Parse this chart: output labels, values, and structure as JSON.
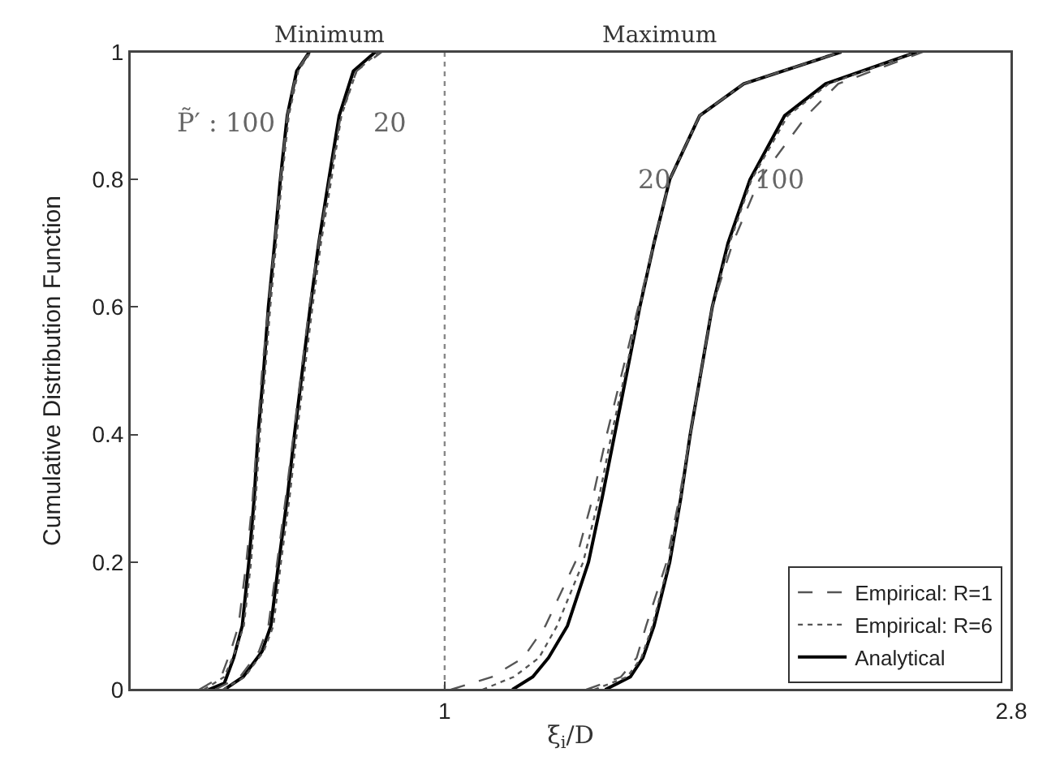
{
  "chart_data": {
    "type": "line",
    "xlabel": "ξ$_{i}$/D",
    "ylabel": "Cumulative Distribution Function",
    "xlim": [
      0,
      2.8
    ],
    "ylim": [
      0,
      1
    ],
    "xticks": [
      1,
      2.8
    ],
    "yticks": [
      0,
      0.2,
      0.4,
      0.6,
      0.8,
      1
    ],
    "grid": false,
    "legend": "bottom right",
    "marker": "none",
    "ref_lines": [
      {
        "axis": "x",
        "value": 1,
        "color": "#888888",
        "line_style": "dotted"
      }
    ],
    "annotations": [
      "Minimum",
      "Maximum",
      "P̃′ : 100",
      "20",
      "20",
      "100"
    ],
    "series": [
      {
        "name": "Empirical: R=1",
        "color": "#555555",
        "line_style": "dashed",
        "x": [
          0.22,
          0.29,
          0.32,
          0.345,
          0.37,
          0.39,
          0.405,
          0.42,
          0.44,
          0.46,
          0.478,
          0.5,
          0.53,
          0.57
        ],
        "values": [
          0,
          0.02,
          0.06,
          0.1,
          0.2,
          0.3,
          0.4,
          0.5,
          0.6,
          0.7,
          0.8,
          0.9,
          0.97,
          1
        ]
      },
      {
        "name": "Empirical: R=6",
        "color": "#555555",
        "line_style": "dotted",
        "x": [
          0.235,
          0.3,
          0.335,
          0.362,
          0.385,
          0.4,
          0.413,
          0.43,
          0.446,
          0.465,
          0.483,
          0.505,
          0.535,
          0.575
        ],
        "values": [
          0,
          0.02,
          0.06,
          0.1,
          0.2,
          0.3,
          0.4,
          0.5,
          0.6,
          0.7,
          0.8,
          0.9,
          0.97,
          1
        ]
      },
      {
        "name": "Analytical",
        "color": "#000000",
        "line_style": "solid",
        "x": [
          0.25,
          0.3,
          0.33,
          0.357,
          0.378,
          0.395,
          0.407,
          0.425,
          0.44,
          0.46,
          0.478,
          0.5,
          0.53,
          0.57
        ],
        "values": [
          0,
          0.01,
          0.05,
          0.1,
          0.2,
          0.3,
          0.4,
          0.5,
          0.6,
          0.7,
          0.8,
          0.9,
          0.97,
          1
        ]
      },
      {
        "color": "#555555",
        "line_style": "dashed",
        "x": [
          0.27,
          0.35,
          0.41,
          0.44,
          0.468,
          0.495,
          0.52,
          0.545,
          0.57,
          0.6,
          0.635,
          0.67,
          0.72,
          0.8
        ],
        "values": [
          0,
          0.02,
          0.06,
          0.1,
          0.2,
          0.3,
          0.4,
          0.5,
          0.6,
          0.7,
          0.8,
          0.9,
          0.97,
          1
        ]
      },
      {
        "color": "#555555",
        "line_style": "dotted",
        "x": [
          0.295,
          0.365,
          0.425,
          0.456,
          0.48,
          0.507,
          0.53,
          0.555,
          0.58,
          0.607,
          0.64,
          0.672,
          0.72,
          0.79
        ],
        "values": [
          0,
          0.02,
          0.06,
          0.1,
          0.2,
          0.3,
          0.4,
          0.5,
          0.6,
          0.7,
          0.8,
          0.9,
          0.97,
          1
        ]
      },
      {
        "color": "#000000",
        "line_style": "solid",
        "x": [
          0.3,
          0.36,
          0.42,
          0.448,
          0.473,
          0.5,
          0.523,
          0.548,
          0.573,
          0.6,
          0.632,
          0.665,
          0.71,
          0.78
        ],
        "values": [
          0,
          0.02,
          0.06,
          0.1,
          0.2,
          0.3,
          0.4,
          0.5,
          0.6,
          0.7,
          0.8,
          0.9,
          0.97,
          1
        ]
      },
      {
        "color": "#555555",
        "line_style": "dashed",
        "x": [
          1.02,
          1.15,
          1.25,
          1.32,
          1.415,
          1.47,
          1.515,
          1.565,
          1.615,
          1.665,
          1.715,
          1.81,
          1.95,
          2.26
        ],
        "values": [
          0,
          0.02,
          0.05,
          0.1,
          0.2,
          0.3,
          0.4,
          0.5,
          0.6,
          0.7,
          0.8,
          0.9,
          0.95,
          1
        ]
      },
      {
        "color": "#555555",
        "line_style": "dotted",
        "x": [
          1.12,
          1.22,
          1.3,
          1.357,
          1.44,
          1.49,
          1.53,
          1.575,
          1.62,
          1.665,
          1.715,
          1.81,
          1.95,
          2.26
        ],
        "values": [
          0,
          0.02,
          0.05,
          0.1,
          0.2,
          0.3,
          0.4,
          0.5,
          0.6,
          0.7,
          0.8,
          0.9,
          0.95,
          1
        ]
      },
      {
        "color": "#000000",
        "line_style": "solid",
        "x": [
          1.215,
          1.28,
          1.33,
          1.39,
          1.457,
          1.5,
          1.54,
          1.58,
          1.62,
          1.665,
          1.715,
          1.81,
          1.95,
          2.26
        ],
        "values": [
          0,
          0.02,
          0.05,
          0.1,
          0.2,
          0.3,
          0.4,
          0.5,
          0.6,
          0.7,
          0.8,
          0.9,
          0.95,
          1
        ]
      },
      {
        "color": "#555555",
        "line_style": "dashed",
        "x": [
          1.45,
          1.56,
          1.61,
          1.64,
          1.705,
          1.745,
          1.78,
          1.815,
          1.85,
          1.915,
          2.0,
          2.15,
          2.25,
          2.52
        ],
        "values": [
          0,
          0.02,
          0.05,
          0.1,
          0.2,
          0.3,
          0.4,
          0.5,
          0.6,
          0.7,
          0.8,
          0.9,
          0.95,
          1
        ]
      },
      {
        "color": "#555555",
        "line_style": "dotted",
        "x": [
          1.475,
          1.58,
          1.625,
          1.66,
          1.712,
          1.75,
          1.78,
          1.815,
          1.85,
          1.905,
          1.975,
          2.09,
          2.22,
          2.5
        ],
        "values": [
          0,
          0.02,
          0.05,
          0.1,
          0.2,
          0.3,
          0.4,
          0.5,
          0.6,
          0.7,
          0.8,
          0.9,
          0.95,
          1
        ]
      },
      {
        "color": "#000000",
        "line_style": "solid",
        "x": [
          1.51,
          1.59,
          1.63,
          1.665,
          1.715,
          1.75,
          1.78,
          1.815,
          1.85,
          1.9,
          1.97,
          2.08,
          2.21,
          2.5
        ],
        "values": [
          0,
          0.02,
          0.05,
          0.1,
          0.2,
          0.3,
          0.4,
          0.5,
          0.6,
          0.7,
          0.8,
          0.9,
          0.95,
          1
        ]
      }
    ]
  }
}
